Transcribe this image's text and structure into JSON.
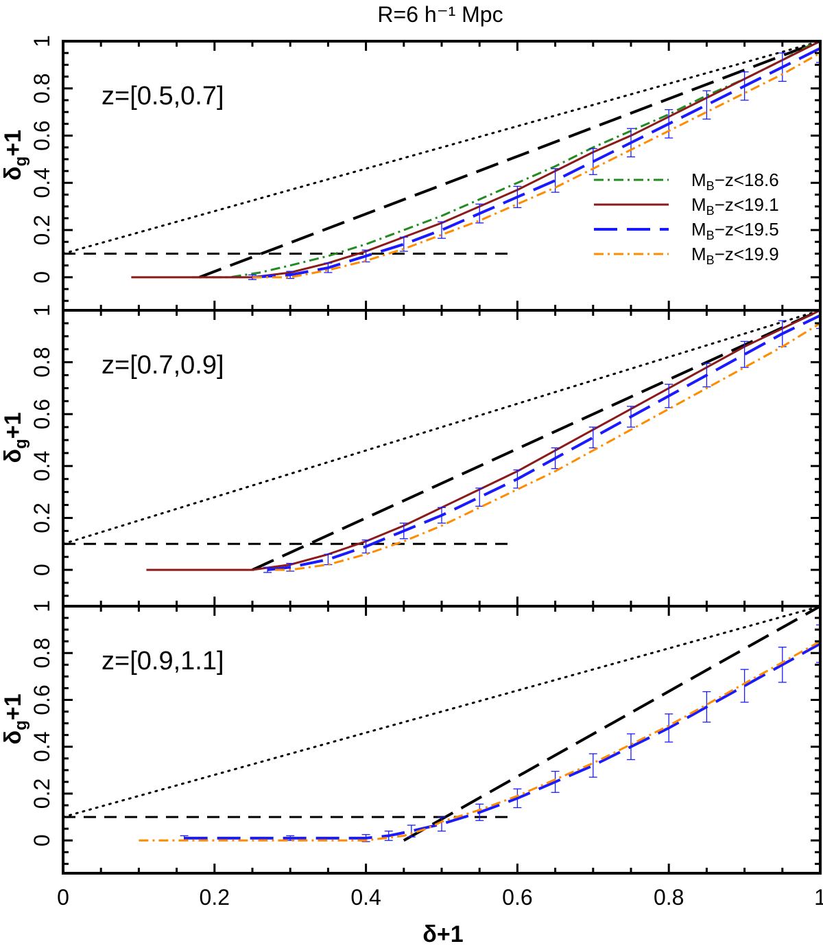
{
  "chart_data": {
    "type": "line",
    "title": "R=6  h⁻¹ Mpc",
    "xlabel": "δ+1",
    "ylabel": "δg+1",
    "ylabel_main": "δ",
    "ylabel_sub": "g",
    "ylabel_tail": "+1",
    "xlim": [
      0,
      1
    ],
    "ylim": [
      -0.14,
      1.0
    ],
    "x_ticks": [
      {
        "value": 0,
        "label": "0"
      },
      {
        "value": 0.2,
        "label": "0.2"
      },
      {
        "value": 0.4,
        "label": "0.4"
      },
      {
        "value": 0.6,
        "label": "0.6"
      },
      {
        "value": 0.8,
        "label": "0.8"
      },
      {
        "value": 1,
        "label": "1"
      }
    ],
    "y_ticks": [
      {
        "value": 0,
        "label": "0"
      },
      {
        "value": 0.2,
        "label": "0.2"
      },
      {
        "value": 0.4,
        "label": "0.4"
      },
      {
        "value": 0.6,
        "label": "0.6"
      },
      {
        "value": 0.8,
        "label": "0.8"
      },
      {
        "value": 1,
        "label": "1"
      }
    ],
    "legend": {
      "placement": "right, top panel",
      "entries": [
        {
          "label": "M",
          "sub": "B",
          "suffix": "−z<18.6",
          "color": "#228b22",
          "style": "dashdot"
        },
        {
          "label": "M",
          "sub": "B",
          "suffix": "−z<19.1",
          "color": "#8b1a1a",
          "style": "solid"
        },
        {
          "label": "M",
          "sub": "B",
          "suffix": "−z<19.5",
          "color": "#1a1aff",
          "style": "longdash"
        },
        {
          "label": "M",
          "sub": "B",
          "suffix": "−z<19.9",
          "color": "#ff8c00",
          "style": "dashdot"
        }
      ]
    },
    "panels": [
      {
        "label": "z=[0.5,0.7]",
        "reference_lines": {
          "dotted": {
            "x": [
              0,
              1
            ],
            "y": [
              0.1,
              1.0
            ]
          },
          "longdash": {
            "x": [
              0.18,
              1.0
            ],
            "y": [
              0.0,
              1.0
            ]
          },
          "threshold": {
            "x": [
              0,
              0.59
            ],
            "y": [
              0.1,
              0.1
            ]
          }
        },
        "series": [
          {
            "name": "MB-z<18.6",
            "color": "#228b22",
            "style": "dashdot",
            "x": [
              0.17,
              0.22,
              0.26,
              0.3,
              0.35,
              0.4,
              0.45,
              0.5,
              0.55,
              0.6,
              0.65,
              0.7,
              0.75,
              0.8,
              0.85,
              0.9,
              0.95,
              0.99
            ],
            "y": [
              0.0,
              0.0,
              0.02,
              0.05,
              0.09,
              0.14,
              0.2,
              0.26,
              0.33,
              0.4,
              0.47,
              0.55,
              0.62,
              0.69,
              0.77,
              0.84,
              0.92,
              0.99
            ]
          },
          {
            "name": "MB-z<19.1",
            "color": "#8b1a1a",
            "style": "solid",
            "x": [
              0.09,
              0.2,
              0.25,
              0.3,
              0.35,
              0.4,
              0.45,
              0.5,
              0.55,
              0.6,
              0.65,
              0.7,
              0.75,
              0.8,
              0.85,
              0.9,
              0.95,
              1.0
            ],
            "y": [
              0.0,
              0.0,
              0.0,
              0.02,
              0.06,
              0.11,
              0.17,
              0.23,
              0.3,
              0.37,
              0.45,
              0.53,
              0.6,
              0.68,
              0.76,
              0.84,
              0.92,
              1.0
            ]
          },
          {
            "name": "MB-z<19.5",
            "color": "#1a1aff",
            "style": "longdash",
            "x": [
              0.25,
              0.3,
              0.35,
              0.4,
              0.45,
              0.5,
              0.55,
              0.6,
              0.65,
              0.7,
              0.75,
              0.8,
              0.85,
              0.9,
              0.95,
              1.0
            ],
            "y": [
              0.0,
              0.01,
              0.04,
              0.09,
              0.14,
              0.2,
              0.27,
              0.34,
              0.41,
              0.49,
              0.57,
              0.65,
              0.73,
              0.81,
              0.89,
              0.97
            ],
            "err": [
              0.01,
              0.015,
              0.02,
              0.025,
              0.03,
              0.035,
              0.04,
              0.045,
              0.05,
              0.055,
              0.06,
              0.06,
              0.06,
              0.06,
              0.06,
              0.06
            ]
          },
          {
            "name": "MB-z<19.9",
            "color": "#ff8c00",
            "style": "dashdot",
            "x": [
              0.25,
              0.3,
              0.35,
              0.4,
              0.45,
              0.5,
              0.55,
              0.6,
              0.65,
              0.7,
              0.75,
              0.8,
              0.85,
              0.9,
              0.95,
              1.0
            ],
            "y": [
              0.0,
              0.0,
              0.03,
              0.07,
              0.12,
              0.18,
              0.24,
              0.31,
              0.38,
              0.46,
              0.54,
              0.62,
              0.7,
              0.78,
              0.86,
              0.95
            ]
          }
        ]
      },
      {
        "label": "z=[0.7,0.9]",
        "reference_lines": {
          "dotted": {
            "x": [
              0,
              1
            ],
            "y": [
              0.1,
              1.0
            ]
          },
          "longdash": {
            "x": [
              0.25,
              1.0
            ],
            "y": [
              0.0,
              1.0
            ]
          },
          "threshold": {
            "x": [
              0,
              0.59
            ],
            "y": [
              0.1,
              0.1
            ]
          }
        },
        "series": [
          {
            "name": "MB-z<19.1",
            "color": "#8b1a1a",
            "style": "solid",
            "x": [
              0.11,
              0.2,
              0.25,
              0.3,
              0.35,
              0.4,
              0.45,
              0.5,
              0.55,
              0.6,
              0.65,
              0.7,
              0.75,
              0.8,
              0.85,
              0.9,
              0.95,
              1.0
            ],
            "y": [
              0.0,
              0.0,
              0.0,
              0.02,
              0.06,
              0.11,
              0.17,
              0.24,
              0.31,
              0.38,
              0.46,
              0.54,
              0.62,
              0.7,
              0.78,
              0.86,
              0.93,
              1.0
            ]
          },
          {
            "name": "MB-z<19.5",
            "color": "#1a1aff",
            "style": "longdash",
            "x": [
              0.27,
              0.3,
              0.35,
              0.4,
              0.45,
              0.5,
              0.55,
              0.6,
              0.65,
              0.7,
              0.75,
              0.8,
              0.85,
              0.9,
              0.95,
              1.0
            ],
            "y": [
              0.0,
              0.01,
              0.04,
              0.09,
              0.15,
              0.21,
              0.28,
              0.35,
              0.43,
              0.51,
              0.59,
              0.67,
              0.75,
              0.83,
              0.91,
              0.98
            ],
            "err": [
              0.01,
              0.015,
              0.02,
              0.025,
              0.03,
              0.03,
              0.035,
              0.035,
              0.04,
              0.04,
              0.04,
              0.045,
              0.045,
              0.05,
              0.05,
              0.05
            ]
          },
          {
            "name": "MB-z<19.9",
            "color": "#ff8c00",
            "style": "dashdot",
            "x": [
              0.28,
              0.3,
              0.35,
              0.4,
              0.45,
              0.5,
              0.55,
              0.6,
              0.65,
              0.7,
              0.75,
              0.8,
              0.85,
              0.9,
              0.95,
              1.0
            ],
            "y": [
              0.0,
              0.0,
              0.02,
              0.06,
              0.11,
              0.17,
              0.24,
              0.31,
              0.38,
              0.46,
              0.54,
              0.62,
              0.7,
              0.78,
              0.86,
              0.95
            ]
          }
        ]
      },
      {
        "label": "z=[0.9,1.1]",
        "reference_lines": {
          "dotted": {
            "x": [
              0,
              1
            ],
            "y": [
              0.1,
              1.0
            ]
          },
          "longdash": {
            "x": [
              0.45,
              1.0
            ],
            "y": [
              0.0,
              1.0
            ]
          },
          "threshold": {
            "x": [
              0,
              0.59
            ],
            "y": [
              0.1,
              0.1
            ]
          }
        },
        "series": [
          {
            "name": "MB-z<19.5",
            "color": "#1a1aff",
            "style": "longdash",
            "x": [
              0.16,
              0.3,
              0.4,
              0.43,
              0.46,
              0.5,
              0.55,
              0.6,
              0.65,
              0.7,
              0.75,
              0.8,
              0.85,
              0.9,
              0.95,
              1.0
            ],
            "y": [
              0.01,
              0.01,
              0.01,
              0.02,
              0.04,
              0.07,
              0.12,
              0.18,
              0.25,
              0.32,
              0.4,
              0.48,
              0.57,
              0.66,
              0.75,
              0.84
            ],
            "err": [
              0.01,
              0.01,
              0.015,
              0.02,
              0.025,
              0.03,
              0.035,
              0.04,
              0.045,
              0.05,
              0.055,
              0.06,
              0.065,
              0.07,
              0.075,
              0.08
            ]
          },
          {
            "name": "MB-z<19.9",
            "color": "#ff8c00",
            "style": "dashdot",
            "x": [
              0.1,
              0.3,
              0.4,
              0.45,
              0.48,
              0.5,
              0.55,
              0.6,
              0.65,
              0.7,
              0.75,
              0.8,
              0.85,
              0.9,
              0.95,
              1.0
            ],
            "y": [
              0.0,
              0.0,
              0.0,
              0.02,
              0.05,
              0.08,
              0.13,
              0.19,
              0.26,
              0.33,
              0.41,
              0.49,
              0.58,
              0.67,
              0.76,
              0.85
            ]
          }
        ]
      }
    ]
  }
}
